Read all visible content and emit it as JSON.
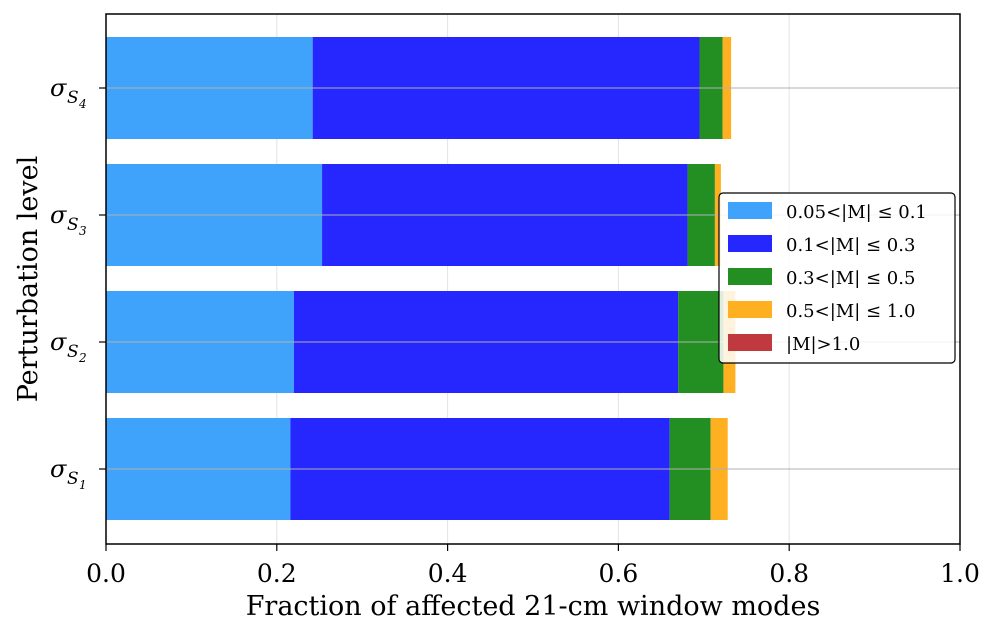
{
  "chart_data": {
    "type": "bar",
    "orientation": "horizontal",
    "stacked": true,
    "title": "",
    "xlabel": "Fraction of affected 21-cm window modes",
    "ylabel": "Perturbation level",
    "xlim": [
      0.0,
      1.0
    ],
    "xticks": [
      "0.0",
      "0.2",
      "0.4",
      "0.6",
      "0.8",
      "1.0"
    ],
    "grid": true,
    "legend_position": "center-right",
    "categories": [
      {
        "base": "σ",
        "sub": "S",
        "subsub": "1"
      },
      {
        "base": "σ",
        "sub": "S",
        "subsub": "2"
      },
      {
        "base": "σ",
        "sub": "S",
        "subsub": "3"
      },
      {
        "base": "σ",
        "sub": "S",
        "subsub": "4"
      }
    ],
    "series": [
      {
        "name": "0.05<|M| ≤ 0.1",
        "color": "#3fa3fb",
        "values": [
          0.216,
          0.22,
          0.253,
          0.242
        ]
      },
      {
        "name": "0.1<|M| ≤ 0.3",
        "color": "#2626ff",
        "values": [
          0.444,
          0.45,
          0.428,
          0.453
        ]
      },
      {
        "name": "0.3<|M| ≤ 0.5",
        "color": "#238f23",
        "values": [
          0.048,
          0.053,
          0.032,
          0.027
        ]
      },
      {
        "name": "0.5<|M| ≤ 1.0",
        "color": "#ffb020",
        "values": [
          0.02,
          0.014,
          0.007,
          0.01
        ]
      },
      {
        "name": "|M|>1.0",
        "color": "#c0393f",
        "values": [
          0.0,
          0.0,
          0.0,
          0.0
        ]
      }
    ]
  }
}
